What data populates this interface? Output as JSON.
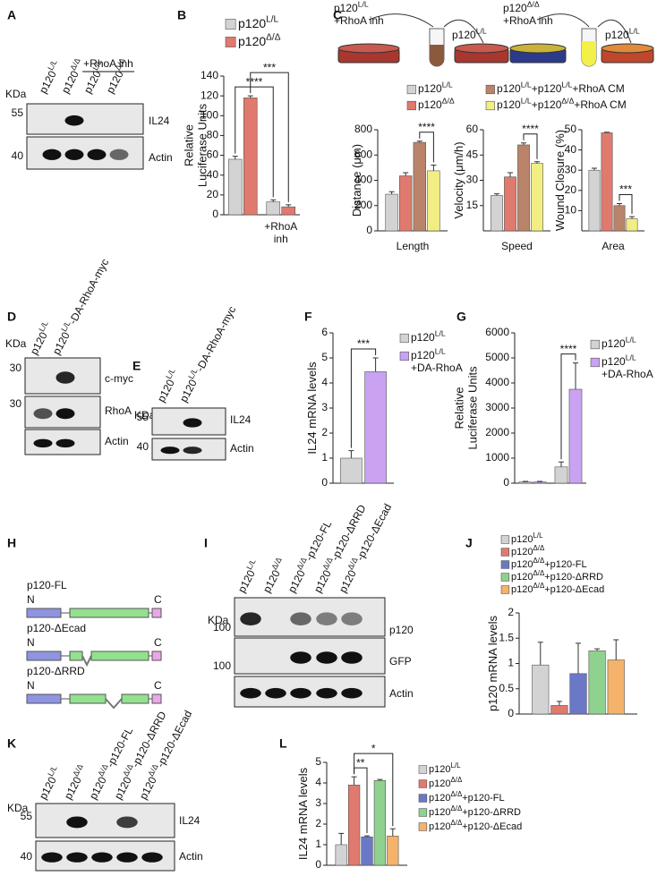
{
  "panel_labels": [
    "A",
    "B",
    "C",
    "D",
    "E",
    "F",
    "G",
    "H",
    "I",
    "J",
    "K",
    "L"
  ],
  "schematic": [
    [
      [
        "p120",
        "L/L"
      ],
      [
        "+RhoA inh"
      ]
    ],
    [
      [
        "p120",
        "L/L"
      ]
    ],
    [
      [
        "p120",
        "Δ/Δ"
      ],
      [
        "+RhoA inh"
      ]
    ],
    [
      [
        "p120",
        "L/L"
      ]
    ]
  ],
  "blots": [
    {
      "kda": "KDa",
      "lanes": [
        [
          [
            "p120",
            "L/L"
          ]
        ],
        [
          [
            "p120",
            "Δ/Δ"
          ]
        ],
        [
          [
            "p120",
            "L/L"
          ]
        ],
        [
          [
            "p120",
            "Δ/Δ"
          ]
        ]
      ],
      "group": "+RhoA inh",
      "markers": [
        55,
        40
      ],
      "bands": [
        "IL24",
        "Actin"
      ]
    },
    {
      "kda": "KDa",
      "lanes": [
        [
          [
            "p120",
            "L/L"
          ]
        ],
        [
          [
            "p120",
            "L/L",
            "-DA-RhoA-myc"
          ]
        ]
      ],
      "markers": [
        30,
        30
      ],
      "bands": [
        "c-myc",
        "RhoA",
        "Actin"
      ]
    },
    {
      "kda": "KDa",
      "lanes": [
        [
          [
            "p120",
            "L/L"
          ]
        ],
        [
          [
            "p120",
            "L/L",
            "-DA-RhoA-myc"
          ]
        ]
      ],
      "markers": [
        55,
        40
      ],
      "bands": [
        "IL24",
        "Actin"
      ]
    },
    {
      "kda": "KDa",
      "lanes": [
        [
          [
            "p120",
            "L/L"
          ]
        ],
        [
          [
            "p120",
            "Δ/Δ"
          ]
        ],
        [
          [
            "p120",
            "Δ/Δ",
            "-p120-FL"
          ]
        ],
        [
          [
            "p120",
            "Δ/Δ",
            "-p120-ΔRRD"
          ]
        ],
        [
          [
            "p120",
            "Δ/Δ",
            "-p120-ΔEcad"
          ]
        ]
      ],
      "markers": [
        100,
        100
      ],
      "bands": [
        "p120",
        "GFP",
        "Actin"
      ]
    },
    {
      "kda": "KDa",
      "lanes": [
        [
          [
            "p120",
            "L/L"
          ]
        ],
        [
          [
            "p120",
            "Δ/Δ"
          ]
        ],
        [
          [
            "p120",
            "Δ/Δ",
            "-p120-FL"
          ]
        ],
        [
          [
            "p120",
            "Δ/Δ",
            "-p120-ΔRRD"
          ]
        ],
        [
          [
            "p120",
            "Δ/Δ",
            "-p120-ΔEcad"
          ]
        ]
      ],
      "markers": [
        55,
        40
      ],
      "bands": [
        "IL24",
        "Actin"
      ]
    }
  ],
  "constructs": {
    "items": [
      "p120-FL",
      "p120-ΔEcad",
      "p120-ΔRRD"
    ],
    "n": "N",
    "c": "C"
  },
  "chart_data": [
    {
      "type": "bar",
      "ylabel": [
        [
          "Relative"
        ],
        [
          "Luciferase Units"
        ]
      ],
      "ylim": [
        0,
        140
      ],
      "yticks": [
        0,
        20,
        40,
        60,
        80,
        100,
        120,
        140
      ],
      "categories": [
        null,
        [
          [
            "+RhoA"
          ],
          [
            "inh"
          ]
        ]
      ],
      "series": [
        {
          "name": [
            [
              "p120",
              "L/L"
            ]
          ],
          "color": "#d3d3d3",
          "values": [
            56,
            13
          ],
          "errors": [
            3,
            2
          ]
        },
        {
          "name": [
            [
              "p120",
              "Δ/Δ"
            ]
          ],
          "color": "#e07a6e",
          "values": [
            118,
            8
          ],
          "errors": [
            2,
            2
          ]
        }
      ],
      "annotations": [
        "****",
        "***"
      ]
    },
    {
      "type": "bar",
      "subplots": [
        {
          "category": "Length",
          "ylabel": [
            [
              "Distance (μm)"
            ]
          ],
          "ylim": [
            0,
            800
          ],
          "yticks": [
            0,
            200,
            400,
            600,
            800
          ],
          "annotation": "****"
        },
        {
          "category": "Speed",
          "ylabel": [
            [
              "Velocity (μm/h)"
            ]
          ],
          "ylim": [
            0,
            60
          ],
          "yticks": [
            15,
            30,
            45,
            60
          ],
          "annotation": "****"
        },
        {
          "category": "Area",
          "ylabel": [
            [
              "Wound Closure (%)"
            ]
          ],
          "ylim": [
            0,
            50
          ],
          "yticks": [
            10,
            20,
            30,
            40,
            50
          ],
          "annotation": "***"
        }
      ],
      "series": [
        {
          "name": [
            [
              "p120",
              "L/L"
            ]
          ],
          "color": "#d3d3d3",
          "values": [
            290,
            21,
            30
          ],
          "errors": [
            20,
            1,
            1
          ]
        },
        {
          "name": [
            [
              "p120",
              "Δ/Δ"
            ]
          ],
          "color": "#e07a6e",
          "values": [
            435,
            32,
            48.5
          ],
          "errors": [
            25,
            2.5,
            0.3
          ]
        },
        {
          "name": [
            [
              "p120",
              "L/L",
              "+p120",
              "L/L",
              "+RhoA CM"
            ]
          ],
          "color": "#b98469",
          "values": [
            700,
            51,
            12.5
          ],
          "errors": [
            10,
            1.2,
            1
          ]
        },
        {
          "name": [
            [
              "p120",
              "L/L",
              "+p120",
              "Δ/Δ",
              "+RhoA CM"
            ]
          ],
          "color": "#f2ee84",
          "values": [
            475,
            40,
            6
          ],
          "errors": [
            45,
            1,
            1
          ]
        }
      ]
    },
    {
      "type": "bar",
      "ylabel": [
        [
          "IL24 mRNA levels"
        ]
      ],
      "ylim": [
        0,
        6
      ],
      "yticks": [
        0,
        1,
        2,
        3,
        4,
        5,
        6
      ],
      "categories": [
        null
      ],
      "series": [
        {
          "name": [
            [
              "p120",
              "L/L"
            ]
          ],
          "color": "#d3d3d3",
          "values": [
            1.0
          ],
          "errors": [
            0.3
          ]
        },
        {
          "name": [
            [
              "p120",
              "L/L"
            ],
            [
              "+DA-RhoA"
            ]
          ],
          "color": "#c9a2f2",
          "values": [
            4.45
          ],
          "errors": [
            0.55
          ]
        }
      ],
      "annotations": [
        "***"
      ]
    },
    {
      "type": "bar",
      "ylabel": [
        [
          "Relative"
        ],
        [
          "Luciferase Units"
        ]
      ],
      "ylim": [
        0,
        6000
      ],
      "yticks": [
        0,
        1000,
        2000,
        3000,
        4000,
        5000,
        6000
      ],
      "categories": [
        null,
        null
      ],
      "series": [
        {
          "name": [
            [
              "p120",
              "L/L"
            ]
          ],
          "color": "#d3d3d3",
          "values": [
            50,
            650
          ],
          "errors": [
            20,
            200
          ]
        },
        {
          "name": [
            [
              "p120",
              "L/L"
            ],
            [
              "+DA-RhoA"
            ]
          ],
          "color": "#c9a2f2",
          "values": [
            50,
            3750
          ],
          "errors": [
            20,
            1050
          ]
        }
      ],
      "annotations": [
        "****"
      ]
    },
    {
      "type": "bar",
      "ylabel": [
        [
          "p120 mRNA levels"
        ]
      ],
      "ylim": [
        0,
        2
      ],
      "yticks": [
        0,
        0.5,
        1,
        1.5,
        2
      ],
      "categories": [
        null
      ],
      "series": [
        {
          "name": [
            [
              "p120",
              "L/L"
            ]
          ],
          "color": "#d3d3d3",
          "values": [
            0.97
          ],
          "errors": [
            0.45
          ]
        },
        {
          "name": [
            [
              "p120",
              "Δ/Δ"
            ]
          ],
          "color": "#e07a6e",
          "values": [
            0.17
          ],
          "errors": [
            0.08
          ]
        },
        {
          "name": [
            [
              "p120",
              "Δ/Δ",
              "+p120-FL"
            ]
          ],
          "color": "#6b78c8",
          "values": [
            0.8
          ],
          "errors": [
            0.6
          ]
        },
        {
          "name": [
            [
              "p120",
              "Δ/Δ",
              "+p120-ΔRRD"
            ]
          ],
          "color": "#8fd18f",
          "values": [
            1.25
          ],
          "errors": [
            0.04
          ]
        },
        {
          "name": [
            [
              "p120",
              "Δ/Δ",
              "+p120-ΔEcad"
            ]
          ],
          "color": "#f4b26a",
          "values": [
            1.07
          ],
          "errors": [
            0.4
          ]
        }
      ]
    },
    {
      "type": "bar",
      "ylabel": [
        [
          "IL24 mRNA levels"
        ]
      ],
      "ylim": [
        0,
        5
      ],
      "yticks": [
        0,
        1,
        2,
        3,
        4,
        5
      ],
      "categories": [
        null
      ],
      "series": [
        {
          "name": [
            [
              "p120",
              "L/L"
            ]
          ],
          "color": "#d3d3d3",
          "values": [
            1.0
          ],
          "errors": [
            0.55
          ]
        },
        {
          "name": [
            [
              "p120",
              "Δ/Δ"
            ]
          ],
          "color": "#e07a6e",
          "values": [
            3.9
          ],
          "errors": [
            0.4
          ]
        },
        {
          "name": [
            [
              "p120",
              "Δ/Δ",
              "+p120-FL"
            ]
          ],
          "color": "#6b78c8",
          "values": [
            1.38
          ],
          "errors": [
            0.05
          ]
        },
        {
          "name": [
            [
              "p120",
              "Δ/Δ",
              "+p120-ΔRRD"
            ]
          ],
          "color": "#8fd18f",
          "values": [
            4.12
          ],
          "errors": [
            0.05
          ]
        },
        {
          "name": [
            [
              "p120",
              "Δ/Δ",
              "+p120-ΔEcad"
            ]
          ],
          "color": "#f4b26a",
          "values": [
            1.42
          ],
          "errors": [
            0.35
          ]
        }
      ],
      "annotations": [
        "**",
        "*"
      ]
    }
  ]
}
